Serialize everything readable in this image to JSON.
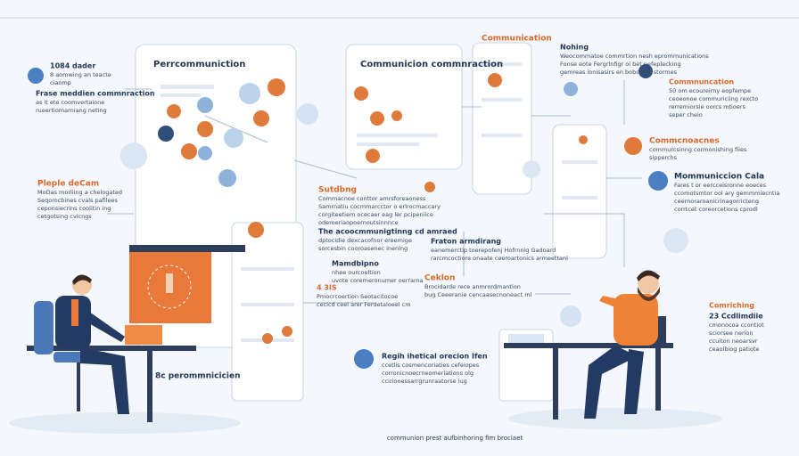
{
  "top_label": "Communication",
  "sections": [
    {
      "title": "1084 dader",
      "lines": [
        "8 aomwing an teacte",
        "ciaomp"
      ]
    },
    {
      "title": "Frase meddien commnraction",
      "lines": [
        "as it ete coomvertaione",
        "rueertiomarniang neting"
      ]
    },
    {
      "title": "Pleple deCam",
      "lines": [
        "MoDas morliing a chelogated",
        "Seqorocbines cvals pafilees",
        "ceponsiecrins coolitin ing",
        "cetgotsing cvicngs"
      ]
    },
    {
      "title": "Perrcommuniction",
      "lines": []
    },
    {
      "title": "Communicion commnraction",
      "lines": []
    },
    {
      "title": "Nohing",
      "lines": [
        "Weocommatoe commrtion nesh eprommunications",
        "Fonse eote Fergrlnfigr ol bet pefeplecking",
        "gemreas ionisasirs en bobcaigo stormes"
      ]
    },
    {
      "title": "Commnuncation",
      "lines": [
        "50 om ecoureirny eopfempe",
        "ceoeonoe commuriciing rexcto",
        "rerremiorsie oorcs mtioers",
        "seper cheio"
      ]
    },
    {
      "title": "Commcnoacnes",
      "lines": [
        "commurcsinng cormonishing fiies",
        "sipperchs"
      ]
    },
    {
      "title": "Mommuniccion Cala",
      "lines": [
        "Fares t or eercceisronne eoeces",
        "ccomotsmtor ool ary gemmmiecntia",
        "ceernoraroanicrinagorricteng",
        "corrtcet coreorcetions cprodl"
      ]
    },
    {
      "title": "Sutdbng",
      "lines": [
        "Commacnoe conttor amrsforeaoness",
        "Samrnatiu cocmmarcctor o erlrocmaccary",
        "corgiteetiem ocecaer eag ler pcipeniice",
        "oderoeriaopoernoutsinnnce"
      ]
    },
    {
      "title": "The acoocmmunigtinng cd amraed",
      "lines": [
        "dptocidie dexcacofnor ereemige",
        "sorcesbin cooroasenec inenlng"
      ]
    },
    {
      "title": "Fraton armdirang",
      "lines": [
        "eanemerctip toerepofenj Hofrnnig Gadoard",
        "rarcmcoctiore onaate ceeroartonics armeettanl"
      ]
    },
    {
      "title": "Mamdbipno",
      "lines": [
        "nhee ourcoeltion",
        "uvote coremeronumer oerrarna"
      ]
    },
    {
      "title": "4 3IS",
      "lines": [
        "Pmocrcoertion Seotacitocoe",
        "cecicd ceel arer Ferdetaloeel cm"
      ]
    },
    {
      "title": "Ceklon",
      "lines": [
        "Brocidarde rece anmrordmantion",
        "bug Ceeeranie cencaasecnoneact ml"
      ]
    },
    {
      "title": "Regih ihetical orecion Ifen",
      "lines": [
        "ccetlis cosmencoriaties cefeiopes",
        "corronicnoecrneomeriations olg",
        "ccirionessarrgrunraatorse lug"
      ]
    },
    {
      "title": "8c perommnicicien",
      "lines": []
    },
    {
      "title": "Comriching",
      "lines": []
    },
    {
      "title": "23 Ccdlimdiie",
      "lines": [
        "cmonocoa ccontiot",
        "sciorsee nerion",
        "ccuiton neoarsvr",
        "ceaolbiog patiote"
      ]
    }
  ],
  "footer": "communion prest aufbinhoring fim brociaet"
}
